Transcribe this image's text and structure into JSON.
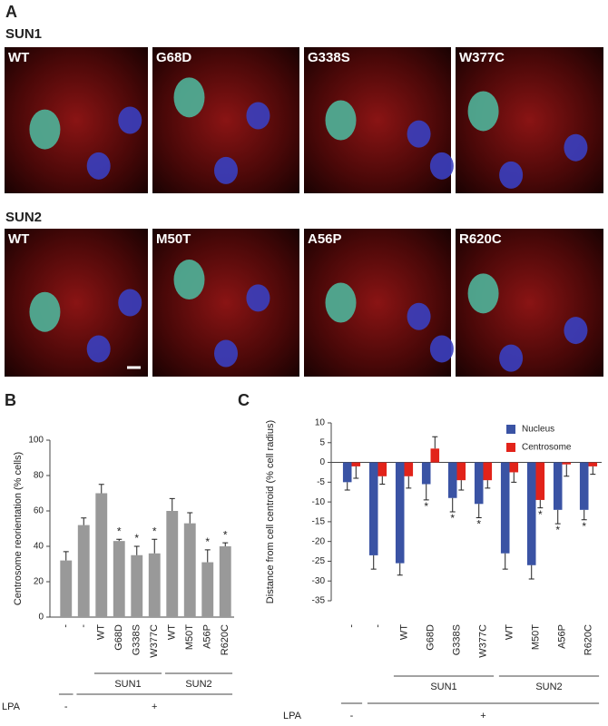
{
  "figure": {
    "panel_a": {
      "label": "A",
      "rows": [
        {
          "title": "SUN1",
          "images": [
            "WT",
            "G68D",
            "G338S",
            "W377C"
          ]
        },
        {
          "title": "SUN2",
          "images": [
            "WT",
            "M50T",
            "A56P",
            "R620C"
          ]
        }
      ]
    }
  },
  "chart_data": [
    {
      "type": "bar",
      "panel": "B",
      "y_label": "Centrosome reorientation (% cells)",
      "categories": [
        "-",
        "-",
        "WT",
        "G68D",
        "G338S",
        "W377C",
        "WT",
        "M50T",
        "A56P",
        "R620C"
      ],
      "values": [
        32,
        52,
        70,
        43,
        35,
        36,
        60,
        53,
        31,
        40
      ],
      "errors": [
        5,
        4,
        5,
        1,
        5,
        8,
        7,
        6,
        7,
        2
      ],
      "annotations": [
        null,
        null,
        null,
        "*",
        "*",
        "*",
        null,
        null,
        "*",
        "*"
      ],
      "color": "#999999",
      "ylim": [
        0,
        100
      ],
      "yticks": [
        0,
        20,
        40,
        60,
        80,
        100
      ],
      "groups": [
        "SUN1",
        "SUN2"
      ],
      "treatment": {
        "label": "LPA",
        "levels": [
          "-",
          "+"
        ]
      }
    },
    {
      "type": "bar",
      "panel": "C",
      "y_label": "Distance from cell centroid (% cell radius)",
      "categories": [
        "-",
        "-",
        "WT",
        "G68D",
        "G338S",
        "W377C",
        "WT",
        "M50T",
        "A56P",
        "R620C"
      ],
      "series": [
        {
          "name": "Nucleus",
          "color": "#3a53a4",
          "values": [
            -5,
            -23.5,
            -25.5,
            -5.5,
            -9,
            -10.5,
            -23,
            -26,
            -12,
            -12
          ],
          "errors": [
            2,
            3.5,
            3,
            4,
            3.5,
            3.5,
            4,
            3.5,
            3.5,
            2.5
          ],
          "annotations": [
            null,
            null,
            null,
            "*",
            "*",
            "*",
            null,
            null,
            "*",
            "*"
          ]
        },
        {
          "name": "Centrosome",
          "color": "#e2231a",
          "values": [
            -1,
            -3.5,
            -3.5,
            3.5,
            -4.5,
            -4.5,
            -2.5,
            -9.5,
            -0.5,
            -1
          ],
          "errors": [
            3,
            2,
            3,
            3,
            2.5,
            2,
            2.5,
            2,
            3,
            2
          ],
          "annotations": [
            null,
            null,
            null,
            null,
            null,
            null,
            null,
            "*",
            null,
            null
          ]
        }
      ],
      "ylim": [
        -35,
        10
      ],
      "yticks": [
        -35,
        -30,
        -25,
        -20,
        -15,
        -10,
        -5,
        0,
        5,
        10
      ],
      "groups": [
        "SUN1",
        "SUN2"
      ],
      "treatment": {
        "label": "LPA",
        "levels": [
          "-",
          "+"
        ]
      }
    }
  ]
}
